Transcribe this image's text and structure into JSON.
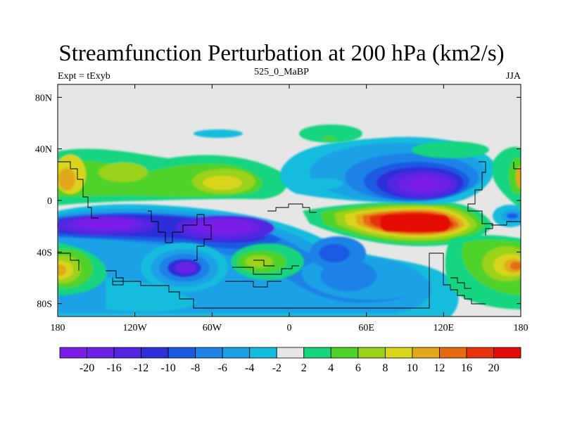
{
  "title": "Streamfunction Perturbation at 200 hPa (km2/s)",
  "left_label": "Expt = tExyb",
  "center_label": "525_0_MaBP",
  "right_label": "JJA",
  "map": {
    "projection": "cylindrical equidistant",
    "lon_range": [
      -180,
      180
    ],
    "lat_range": [
      -90,
      90
    ],
    "x_ticks": [
      "180",
      "120W",
      "60W",
      "0",
      "60E",
      "120E",
      "180"
    ],
    "y_ticks": [
      "80N",
      "40N",
      "0",
      "40S",
      "80S"
    ]
  },
  "colorbar": {
    "labels": [
      "-20",
      "-16",
      "-12",
      "-10",
      "-8",
      "-6",
      "-4",
      "-2",
      "2",
      "4",
      "6",
      "8",
      "10",
      "12",
      "16",
      "20"
    ],
    "colors": [
      "#7b1de6",
      "#6b22e4",
      "#5226e0",
      "#2f2fd8",
      "#1a5ae2",
      "#1e82e6",
      "#1aa0e6",
      "#12bcdc",
      "#e6e6e6",
      "#18d47f",
      "#4fd22a",
      "#9ad21c",
      "#d8d51b",
      "#e2a81b",
      "#e66a12",
      "#e6330e",
      "#e20b06"
    ],
    "zero_color": "#e6e6e6"
  }
}
